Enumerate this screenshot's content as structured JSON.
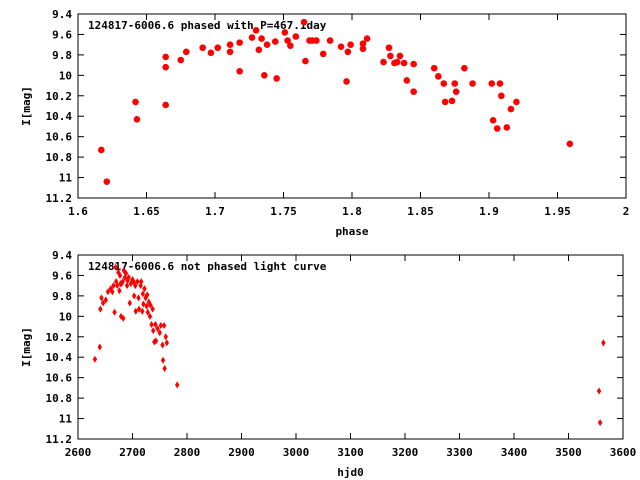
{
  "chart_data": [
    {
      "type": "scatter",
      "title": "124817-6006.6 phased with P=467.1day",
      "xlabel": "phase",
      "ylabel": "I[mag]",
      "xlim": [
        1.6,
        2.0
      ],
      "ylim": [
        9.4,
        11.2
      ],
      "y_inverted": true,
      "xticks": [
        "1.6",
        "1.65",
        "1.7",
        "1.75",
        "1.8",
        "1.85",
        "1.9",
        "1.95",
        "2"
      ],
      "yticks": [
        "9.4",
        "9.6",
        "9.8",
        "10",
        "10.2",
        "10.4",
        "10.6",
        "10.8",
        "11",
        "11.2"
      ],
      "grid": false,
      "marker": "filled-circle",
      "color": "#ff0000",
      "points": [
        [
          1.617,
          10.73
        ],
        [
          1.621,
          11.04
        ],
        [
          1.642,
          10.26
        ],
        [
          1.643,
          10.43
        ],
        [
          1.664,
          9.82
        ],
        [
          1.664,
          9.92
        ],
        [
          1.664,
          10.29
        ],
        [
          1.675,
          9.85
        ],
        [
          1.679,
          9.77
        ],
        [
          1.691,
          9.73
        ],
        [
          1.697,
          9.78
        ],
        [
          1.702,
          9.73
        ],
        [
          1.711,
          9.7
        ],
        [
          1.711,
          9.77
        ],
        [
          1.718,
          9.68
        ],
        [
          1.718,
          9.96
        ],
        [
          1.727,
          9.63
        ],
        [
          1.73,
          9.56
        ],
        [
          1.732,
          9.75
        ],
        [
          1.734,
          9.64
        ],
        [
          1.736,
          10.0
        ],
        [
          1.738,
          9.7
        ],
        [
          1.744,
          9.67
        ],
        [
          1.745,
          10.03
        ],
        [
          1.751,
          9.58
        ],
        [
          1.753,
          9.66
        ],
        [
          1.755,
          9.71
        ],
        [
          1.759,
          9.62
        ],
        [
          1.765,
          9.48
        ],
        [
          1.766,
          9.86
        ],
        [
          1.769,
          9.66
        ],
        [
          1.771,
          9.66
        ],
        [
          1.774,
          9.66
        ],
        [
          1.779,
          9.79
        ],
        [
          1.784,
          9.66
        ],
        [
          1.792,
          9.72
        ],
        [
          1.796,
          10.06
        ],
        [
          1.797,
          9.77
        ],
        [
          1.799,
          9.7
        ],
        [
          1.808,
          9.69
        ],
        [
          1.808,
          9.74
        ],
        [
          1.811,
          9.64
        ],
        [
          1.823,
          9.87
        ],
        [
          1.827,
          9.73
        ],
        [
          1.828,
          9.81
        ],
        [
          1.831,
          9.88
        ],
        [
          1.833,
          9.87
        ],
        [
          1.835,
          9.81
        ],
        [
          1.838,
          9.88
        ],
        [
          1.84,
          10.05
        ],
        [
          1.845,
          9.89
        ],
        [
          1.845,
          10.16
        ],
        [
          1.86,
          9.93
        ],
        [
          1.863,
          10.01
        ],
        [
          1.867,
          10.08
        ],
        [
          1.868,
          10.26
        ],
        [
          1.873,
          10.25
        ],
        [
          1.875,
          10.08
        ],
        [
          1.876,
          10.16
        ],
        [
          1.882,
          9.93
        ],
        [
          1.888,
          10.08
        ],
        [
          1.902,
          10.08
        ],
        [
          1.903,
          10.44
        ],
        [
          1.906,
          10.52
        ],
        [
          1.908,
          10.08
        ],
        [
          1.909,
          10.2
        ],
        [
          1.913,
          10.51
        ],
        [
          1.916,
          10.33
        ],
        [
          1.92,
          10.26
        ],
        [
          1.959,
          10.67
        ]
      ]
    },
    {
      "type": "scatter",
      "title": "124817-6006.6 not phased light curve",
      "xlabel": "hjd0",
      "ylabel": "I[mag]",
      "xlim": [
        2600,
        3600
      ],
      "ylim": [
        9.4,
        11.2
      ],
      "y_inverted": true,
      "xticks": [
        "2600",
        "2700",
        "2800",
        "2900",
        "3000",
        "3100",
        "3200",
        "3300",
        "3400",
        "3500",
        "3600"
      ],
      "yticks": [
        "9.4",
        "9.6",
        "9.8",
        "10",
        "10.2",
        "10.4",
        "10.6",
        "10.8",
        "11",
        "11.2"
      ],
      "grid": false,
      "marker": "diamond",
      "color": "#ff0000",
      "points": [
        [
          2631,
          10.42
        ],
        [
          2640,
          10.3
        ],
        [
          2641,
          9.93
        ],
        [
          2643,
          9.82
        ],
        [
          2646,
          9.87
        ],
        [
          2651,
          9.84
        ],
        [
          2655,
          9.76
        ],
        [
          2660,
          9.73
        ],
        [
          2663,
          9.76
        ],
        [
          2665,
          9.7
        ],
        [
          2667,
          9.96
        ],
        [
          2669,
          9.52
        ],
        [
          2670,
          9.66
        ],
        [
          2672,
          9.7
        ],
        [
          2674,
          9.57
        ],
        [
          2676,
          9.75
        ],
        [
          2677,
          9.6
        ],
        [
          2678,
          9.68
        ],
        [
          2679,
          10.0
        ],
        [
          2680,
          9.68
        ],
        [
          2682,
          9.66
        ],
        [
          2683,
          10.02
        ],
        [
          2684,
          9.55
        ],
        [
          2686,
          9.62
        ],
        [
          2688,
          9.58
        ],
        [
          2690,
          9.7
        ],
        [
          2691,
          9.65
        ],
        [
          2693,
          9.62
        ],
        [
          2695,
          9.87
        ],
        [
          2697,
          9.68
        ],
        [
          2700,
          9.64
        ],
        [
          2702,
          9.66
        ],
        [
          2703,
          9.8
        ],
        [
          2705,
          9.7
        ],
        [
          2706,
          9.95
        ],
        [
          2709,
          9.66
        ],
        [
          2711,
          9.82
        ],
        [
          2712,
          9.93
        ],
        [
          2715,
          9.7
        ],
        [
          2716,
          9.66
        ],
        [
          2718,
          9.95
        ],
        [
          2719,
          9.78
        ],
        [
          2720,
          9.88
        ],
        [
          2722,
          9.73
        ],
        [
          2724,
          9.82
        ],
        [
          2726,
          9.9
        ],
        [
          2727,
          9.79
        ],
        [
          2728,
          9.96
        ],
        [
          2730,
          9.86
        ],
        [
          2732,
          10.0
        ],
        [
          2733,
          9.89
        ],
        [
          2735,
          10.08
        ],
        [
          2737,
          9.93
        ],
        [
          2738,
          10.14
        ],
        [
          2740,
          10.25
        ],
        [
          2742,
          10.08
        ],
        [
          2743,
          10.24
        ],
        [
          2746,
          10.12
        ],
        [
          2750,
          10.16
        ],
        [
          2752,
          10.09
        ],
        [
          2755,
          10.28
        ],
        [
          2756,
          10.43
        ],
        [
          2758,
          10.09
        ],
        [
          2759,
          10.51
        ],
        [
          2761,
          10.2
        ],
        [
          2763,
          10.26
        ],
        [
          2782,
          10.67
        ],
        [
          3556,
          10.73
        ],
        [
          3558,
          11.04
        ],
        [
          3564,
          10.26
        ]
      ]
    }
  ]
}
